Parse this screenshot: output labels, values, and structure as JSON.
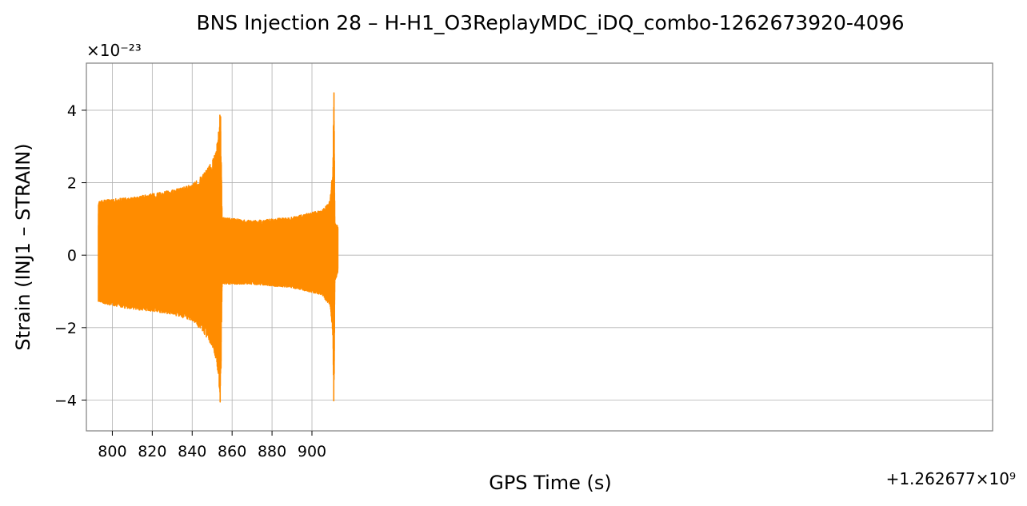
{
  "chart_data": {
    "type": "line",
    "title": "BNS Injection 28 – H-H1_O3ReplayMDC_iDQ_combo-1262673920-4096",
    "xlabel": "GPS Time (s)",
    "ylabel": "Strain (INJ1 – STRAIN)",
    "x_offset_text": "+1.262677×10⁹",
    "y_scale_text": "×10⁻²³",
    "xlim": [
      787,
      1241
    ],
    "ylim": [
      -4.85,
      5.3
    ],
    "x_ticks": [
      800,
      820,
      840,
      860,
      880,
      900
    ],
    "y_ticks": [
      -4,
      -2,
      0,
      2,
      4
    ],
    "y_tick_labels": [
      "−4",
      "−2",
      "0",
      "2",
      "4"
    ],
    "grid": true,
    "series": [
      {
        "color": "#ff8c00",
        "x_range": [
          793,
          913
        ],
        "envelope": {
          "x": [
            793,
            800,
            810,
            820,
            830,
            840,
            845,
            850,
            852,
            853.5,
            854.2,
            855,
            870,
            890,
            905,
            909,
            910.5,
            911,
            911.5,
            913
          ],
          "upper": [
            1.5,
            1.55,
            1.6,
            1.7,
            1.8,
            1.95,
            2.2,
            2.6,
            2.9,
            3.6,
            4.1,
            1.05,
            0.95,
            1.05,
            1.25,
            1.5,
            2.4,
            4.85,
            0.9,
            0.8
          ],
          "lower": [
            -1.3,
            -1.4,
            -1.5,
            -1.55,
            -1.65,
            -1.8,
            -2.1,
            -2.5,
            -2.9,
            -3.6,
            -4.4,
            -0.8,
            -0.8,
            -0.9,
            -1.1,
            -1.4,
            -2.3,
            -4.35,
            -0.7,
            -0.5
          ]
        }
      }
    ]
  }
}
